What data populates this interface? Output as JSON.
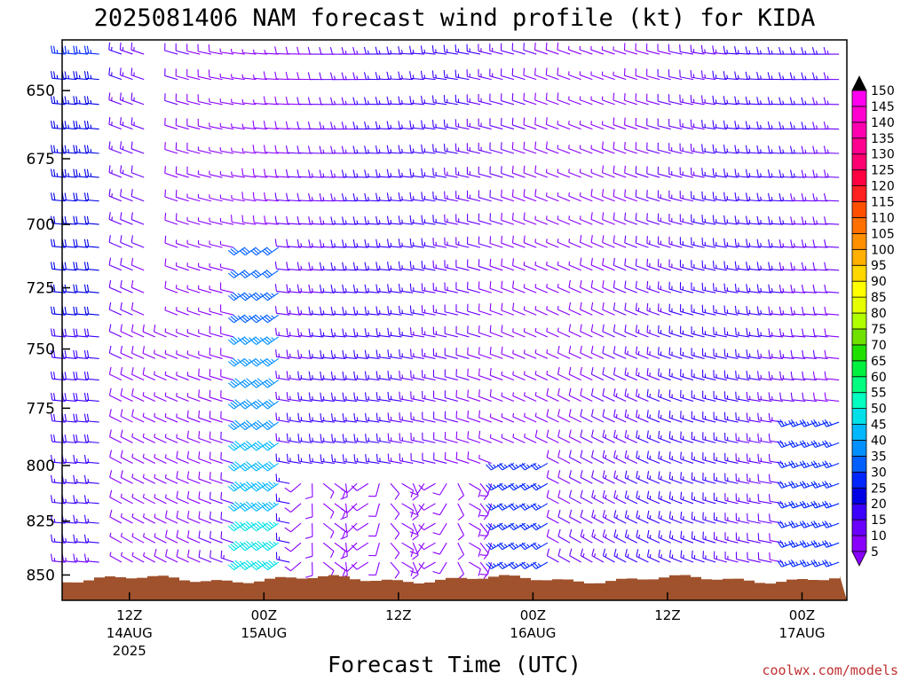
{
  "chart_data": {
    "type": "wind-barb-profile",
    "title": "2025081406 NAM forecast wind profile (kt) for KIDA",
    "xlabel": "Forecast Time (UTC)",
    "ylabel": "",
    "credit": "coolwx.com/models",
    "y_axis": {
      "ticks": [
        650,
        675,
        700,
        725,
        750,
        775,
        800,
        825,
        850
      ],
      "range": [
        632,
        862
      ],
      "scale": "log-pressure"
    },
    "x_axis": {
      "range_hours": [
        6,
        76
      ],
      "ticks": [
        {
          "hour": 12,
          "label": "12Z",
          "sub": "14AUG",
          "sub2": "2025"
        },
        {
          "hour": 24,
          "label": "00Z",
          "sub": "15AUG",
          "sub2": ""
        },
        {
          "hour": 36,
          "label": "12Z",
          "sub": "",
          "sub2": ""
        },
        {
          "hour": 48,
          "label": "00Z",
          "sub": "16AUG",
          "sub2": ""
        },
        {
          "hour": 60,
          "label": "12Z",
          "sub": "",
          "sub2": ""
        },
        {
          "hour": 72,
          "label": "00Z",
          "sub": "17AUG",
          "sub2": ""
        },
        {
          "hour": 84,
          "label": "12Z",
          "sub": "",
          "sub2": ""
        }
      ]
    },
    "colorbar": {
      "levels": [
        5,
        10,
        15,
        20,
        25,
        30,
        35,
        40,
        45,
        50,
        55,
        60,
        65,
        70,
        75,
        80,
        85,
        90,
        95,
        100,
        105,
        110,
        115,
        120,
        125,
        130,
        135,
        140,
        145,
        150
      ],
      "colors": [
        "#8a00ff",
        "#6a00ff",
        "#3c00ff",
        "#0000e6",
        "#0026ff",
        "#0060ff",
        "#0090ff",
        "#00b8ff",
        "#00e0e8",
        "#00ffc0",
        "#00ff80",
        "#00f040",
        "#20e000",
        "#70e000",
        "#b0ff00",
        "#e6ff00",
        "#ffff00",
        "#ffd700",
        "#ffb000",
        "#ff9000",
        "#ff7000",
        "#ff5000",
        "#ff2020",
        "#ff0040",
        "#ff0070",
        "#ff0090",
        "#ff00b0",
        "#ff00d0",
        "#ff00f0",
        "#ff40ff"
      ]
    },
    "terrain": {
      "color": "#a0522d",
      "surface_pressure": 852
    }
  }
}
